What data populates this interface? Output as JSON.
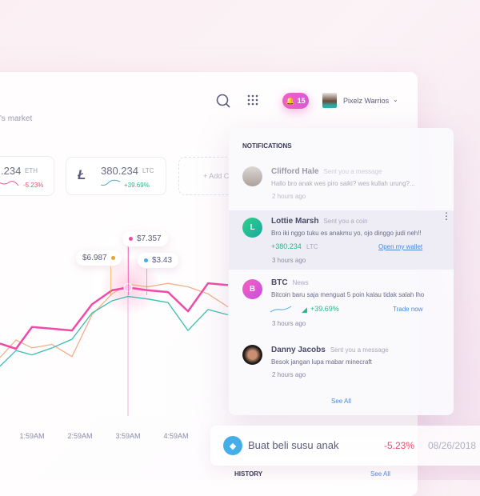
{
  "header": {
    "subtitle": "'s market",
    "search_icon": "search-icon",
    "apps_icon": "grid-icon",
    "notification_count": "15",
    "user_name": "Pixelz Warrios"
  },
  "coins": [
    {
      "value": ".234",
      "symbol": "ETH",
      "change": "-5.23%",
      "color": "#e84a6f"
    },
    {
      "value": "380.234",
      "symbol": "LTC",
      "change": "+39.69%",
      "color": "#2bb58a",
      "icon": "litecoin-icon"
    }
  ],
  "add_card": {
    "label": "+ Add C"
  },
  "tooltips": [
    {
      "label": "$6.987",
      "color": "#f0a030"
    },
    {
      "label": "$7.357",
      "color": "#f04aa8"
    },
    {
      "label": "$3.43",
      "color": "#4aa8e8"
    }
  ],
  "chart_data": {
    "type": "line",
    "x": [
      "1:19",
      "1:39",
      "1:59",
      "2:24",
      "2:49",
      "3:14",
      "3:39",
      "3:59",
      "4:24",
      "4:49",
      "5:14",
      "5:39",
      "6:04"
    ],
    "x_ticks": [
      "1:59AM",
      "2:59AM",
      "3:59AM",
      "4:59AM"
    ],
    "highlight_x": "3:59",
    "ylim": [
      0,
      11
    ],
    "grid": false,
    "series": [
      {
        "color": "#f04aa8",
        "values": [
          4.15,
          3.85,
          5.1,
          5.0,
          4.9,
          6.4,
          7.2,
          7.36,
          7.2,
          7.1,
          6.0,
          7.6,
          7.5
        ]
      },
      {
        "color": "#3cbcb0",
        "values": [
          2.85,
          3.75,
          3.5,
          3.9,
          4.4,
          5.9,
          6.6,
          6.85,
          6.7,
          6.5,
          4.9,
          6.1,
          5.8
        ]
      },
      {
        "color": "#f0b08a",
        "values": [
          3.35,
          4.35,
          3.9,
          4.1,
          3.4,
          5.8,
          7.0,
          7.55,
          7.4,
          7.6,
          7.4,
          7.0,
          6.25
        ]
      }
    ]
  },
  "notifications": {
    "title": "NOTIFICATIONS",
    "items": [
      {
        "name": "Clifford Hale",
        "action": "Sent you a message",
        "message": "Hallo bro anak wes piro saiki? wes kullah urung?...",
        "time": "2 hours ago"
      },
      {
        "name": "Lottie Marsh",
        "action": "Sent you a coin",
        "initial": "L",
        "message": "Bro iki nggo tuku es anakmu yo, ojo dinggo judi neh!!",
        "amount": "+380.234",
        "symbol": "LTC",
        "link": "Open my wallet",
        "time": "3 hours ago"
      },
      {
        "name": "BTC",
        "action": "News",
        "initial": "B",
        "message": "Bitcoin baru saja menguat 5 poin kalau tidak salah lho",
        "change": "+39.69%",
        "link": "Trade now",
        "time": "3 hours ago"
      },
      {
        "name": "Danny Jacobs",
        "action": "Sent you a message",
        "message": "Besok jangan lupa mabar minecraft",
        "time": "2 hours ago"
      }
    ],
    "see_all": "See All"
  },
  "transaction": {
    "title": "Buat beli susu anak",
    "change": "-5.23%",
    "date": "08/26/2018"
  },
  "history": {
    "title": "HISTORY",
    "see_all": "See All"
  }
}
